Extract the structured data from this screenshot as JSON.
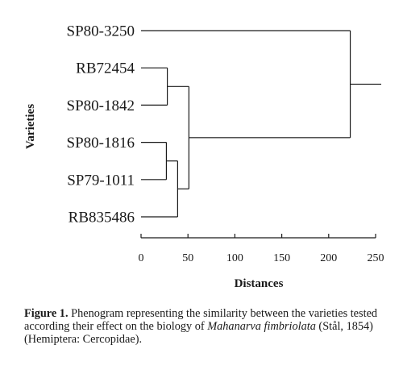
{
  "chart_data": {
    "type": "dendrogram",
    "ylabel": "Varieties",
    "xlabel": "Distances",
    "xlim": [
      0,
      250
    ],
    "xticks": [
      "0",
      "50",
      "100",
      "150",
      "200",
      "250"
    ],
    "leaves": [
      "SP80-3250",
      "RB72454",
      "SP80-1842",
      "SP80-1816",
      "SP79-1011",
      "RB835486"
    ],
    "merges": [
      {
        "members": [
          "RB72454",
          "SP80-1842"
        ],
        "height": 28
      },
      {
        "members": [
          "SP80-1816",
          "SP79-1011"
        ],
        "height": 27
      },
      {
        "members": [
          "SP80-1816",
          "SP79-1011",
          "RB835486"
        ],
        "height": 39
      },
      {
        "members": [
          "RB72454",
          "SP80-1842",
          "SP80-1816",
          "SP79-1011",
          "RB835486"
        ],
        "height": 51
      },
      {
        "members": [
          "SP80-3250",
          "RB72454",
          "SP80-1842",
          "SP80-1816",
          "SP79-1011",
          "RB835486"
        ],
        "height": 223
      }
    ]
  },
  "caption": {
    "label": "Figure 1.",
    "text_before": " Phenogram representing the similarity between the varieties tested according their effect on the biology of ",
    "species": "Mahanarva fimbriolata",
    "text_after": " (Stål, 1854) (Hemiptera: Cercopidae)."
  }
}
